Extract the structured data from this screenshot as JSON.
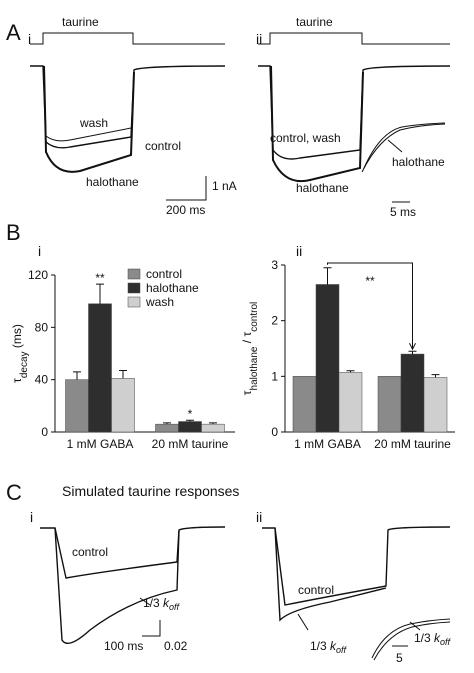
{
  "panel_a": {
    "label": "A",
    "i": {
      "sub": "i",
      "stimulus": "taurine",
      "wash": "wash",
      "control": "control",
      "halothane": "halothane",
      "scale_y": "1 nA",
      "scale_x": "200 ms"
    },
    "ii": {
      "sub": "ii",
      "stimulus": "taurine",
      "control_wash": "control, wash",
      "halothane": "halothane",
      "inset_halothane": "halothane",
      "scale_x": "5 ms"
    }
  },
  "panel_b": {
    "label": "B",
    "i": "i",
    "ii": "ii"
  },
  "panel_c": {
    "label": "C",
    "title": "Simulated taurine responses",
    "i": {
      "sub": "i",
      "control": "control",
      "koff": {
        "prefix": "1/3 ",
        "k": "k",
        "sub": "off"
      },
      "scale_x": "100 ms",
      "scale_y": "0.02"
    },
    "ii": {
      "sub": "ii",
      "control": "control",
      "koff": {
        "prefix": "1/3 ",
        "k": "k",
        "sub": "off"
      },
      "scale_x": "5",
      "inset_koff": {
        "prefix": "1/3 ",
        "k": "k",
        "sub": "off"
      }
    }
  },
  "chart_data": [
    {
      "type": "bar",
      "categories": [
        "1 mM GABA",
        "20 mM taurine"
      ],
      "ylabel": {
        "symbol": "τ",
        "subscript": "decay",
        "unit": " (ms)"
      },
      "ylim": [
        0,
        120
      ],
      "yticks": [
        0,
        40,
        80,
        120
      ],
      "series": [
        {
          "name": "control",
          "color": "#8a8a8a",
          "values": [
            40,
            6
          ],
          "errors": [
            6,
            1
          ]
        },
        {
          "name": "halothane",
          "color": "#2e2e2e",
          "values": [
            98,
            8
          ],
          "errors": [
            15,
            1
          ]
        },
        {
          "name": "wash",
          "color": "#cfcfcf",
          "values": [
            41,
            6
          ],
          "errors": [
            6,
            1
          ]
        }
      ],
      "annotations": [
        "**",
        "*"
      ],
      "legend": "top-right"
    },
    {
      "type": "bar",
      "categories": [
        "1 mM GABA",
        "20 mM taurine"
      ],
      "ylabel": {
        "symbol1": "τ",
        "subscript1": "halothane",
        "slash": " / ",
        "symbol2": "τ",
        "subscript2": "control"
      },
      "ylim": [
        0,
        3
      ],
      "yticks": [
        0,
        1,
        2,
        3
      ],
      "series": [
        {
          "color": "#8a8a8a",
          "values": [
            1.0,
            1.0
          ],
          "errors": [
            null,
            null
          ]
        },
        {
          "color": "#2e2e2e",
          "values": [
            2.65,
            1.4
          ],
          "errors": [
            0.3,
            0.05
          ]
        },
        {
          "color": "#cfcfcf",
          "values": [
            1.07,
            0.98
          ],
          "errors": [
            0.03,
            0.05
          ]
        }
      ],
      "annotations": [
        "**"
      ]
    }
  ]
}
